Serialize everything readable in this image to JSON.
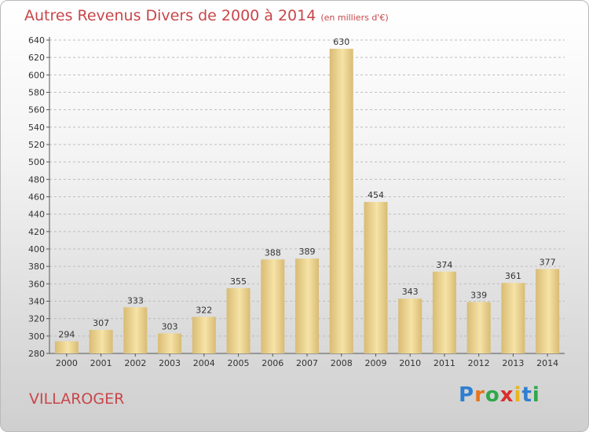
{
  "title": "Autres Revenus Divers de 2000 à 2014",
  "subtitle": "(en milliers d'€)",
  "place": "VILLAROGER",
  "logo": {
    "text": "Proxiti",
    "colors": [
      "#2f7fd0",
      "#e8741c",
      "#2fa84b",
      "#d8302c",
      "#e8b61c",
      "#2f7fd0",
      "#2fa84b"
    ]
  },
  "colors": {
    "title": "#c8464a",
    "bar_light": "#f6e3a6",
    "bar_dark": "#d9bb74",
    "grid": "#bdbdbd"
  },
  "chart_data": {
    "type": "bar",
    "categories": [
      "2000",
      "2001",
      "2002",
      "2003",
      "2004",
      "2005",
      "2006",
      "2007",
      "2008",
      "2009",
      "2010",
      "2011",
      "2012",
      "2013",
      "2014"
    ],
    "values": [
      294,
      307,
      333,
      303,
      322,
      355,
      388,
      389,
      630,
      454,
      343,
      374,
      339,
      361,
      377
    ],
    "ylim": [
      280,
      640
    ],
    "ytick_step": 20,
    "grid": true
  }
}
